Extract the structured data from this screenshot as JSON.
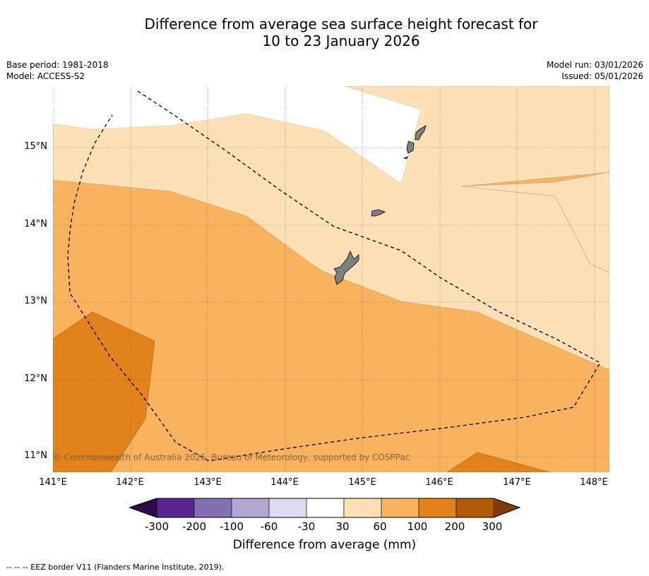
{
  "title": {
    "line1": "Difference from average sea surface height forecast for",
    "line2": "10 to 23 January 2026"
  },
  "meta_left": {
    "base_period": "Base period: 1981-2018",
    "model": "Model: ACCESS-S2"
  },
  "meta_right": {
    "model_run": "Model run: 03/01/2026",
    "issued": "Issued: 05/01/2026"
  },
  "map": {
    "lat_labels": [
      "15°N",
      "14°N",
      "13°N",
      "12°N",
      "11°N"
    ],
    "lon_labels": [
      "141°E",
      "142°E",
      "143°E",
      "144°E",
      "145°E",
      "146°E",
      "147°E",
      "148°E"
    ],
    "copyright": "© Commonwealth of Australia 2026, Bureau of Meteorology, supported by COSPPac",
    "colors": {
      "band_30_60": "#fde0b6",
      "band_60_100": "#f9b35f",
      "band_100_200": "#e1821a",
      "land": "#808080",
      "eez_line": "#000000"
    }
  },
  "colorbar": {
    "ticks": [
      "-300",
      "-200",
      "-100",
      "-60",
      "-30",
      "30",
      "60",
      "100",
      "200",
      "300"
    ],
    "colors": [
      "#2d0a4e",
      "#5b2490",
      "#8270b0",
      "#b1a7d2",
      "#dcdaee",
      "#ffffff",
      "#fde0b6",
      "#f9b35f",
      "#e1821a",
      "#b15a08",
      "#7f3b08"
    ],
    "label": "Difference from average (mm)"
  },
  "footnote": "--  --  -- EEZ border V11 (Flanders Marine Institute, 2019)."
}
